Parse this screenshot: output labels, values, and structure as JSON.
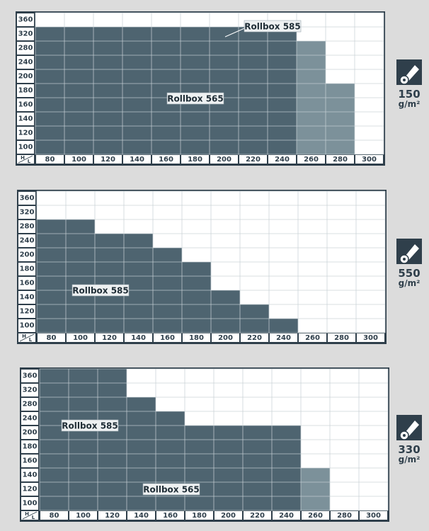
{
  "chart_data": [
    {
      "type": "heatmap",
      "corner_h": "H",
      "corner_l": "L",
      "x": [
        80,
        100,
        120,
        140,
        160,
        180,
        200,
        220,
        240,
        260,
        280,
        300
      ],
      "y": [
        360,
        320,
        280,
        240,
        200,
        180,
        160,
        140,
        120,
        100
      ],
      "series": [
        {
          "name": "Rollbox 585",
          "color": "#4e6470",
          "max_height": [
            320,
            320,
            320,
            320,
            320,
            320,
            320,
            320,
            320,
            0,
            0,
            0
          ]
        },
        {
          "name": "Rollbox 565",
          "color": "#7c919a",
          "max_height": [
            280,
            280,
            280,
            280,
            280,
            280,
            280,
            280,
            280,
            280,
            180,
            0
          ]
        }
      ],
      "grammage": "150",
      "unit": "g/m²"
    },
    {
      "type": "heatmap",
      "corner_h": "H",
      "corner_l": "L",
      "x": [
        80,
        100,
        120,
        140,
        160,
        180,
        200,
        220,
        240,
        260,
        280,
        300
      ],
      "y": [
        360,
        320,
        280,
        240,
        200,
        180,
        160,
        140,
        120,
        100
      ],
      "series": [
        {
          "name": "Rollbox 585",
          "color": "#4e6470",
          "max_height": [
            280,
            280,
            240,
            240,
            200,
            180,
            140,
            120,
            100,
            0,
            0,
            0
          ]
        }
      ],
      "grammage": "550",
      "unit": "g/m²"
    },
    {
      "type": "heatmap",
      "corner_h": "H",
      "corner_l": "L",
      "x": [
        80,
        100,
        120,
        140,
        160,
        180,
        200,
        220,
        240,
        260,
        280,
        300
      ],
      "y": [
        360,
        320,
        280,
        240,
        200,
        180,
        160,
        140,
        120,
        100
      ],
      "series": [
        {
          "name": "Rollbox 585",
          "color": "#4e6470",
          "max_height": [
            360,
            360,
            360,
            280,
            240,
            200,
            200,
            200,
            200,
            0,
            0,
            0
          ]
        },
        {
          "name": "Rollbox 565",
          "color": "#7c919a",
          "max_height": [
            140,
            140,
            140,
            140,
            140,
            140,
            140,
            140,
            140,
            140,
            0,
            0
          ]
        }
      ],
      "grammage": "330",
      "unit": "g/m²"
    }
  ]
}
